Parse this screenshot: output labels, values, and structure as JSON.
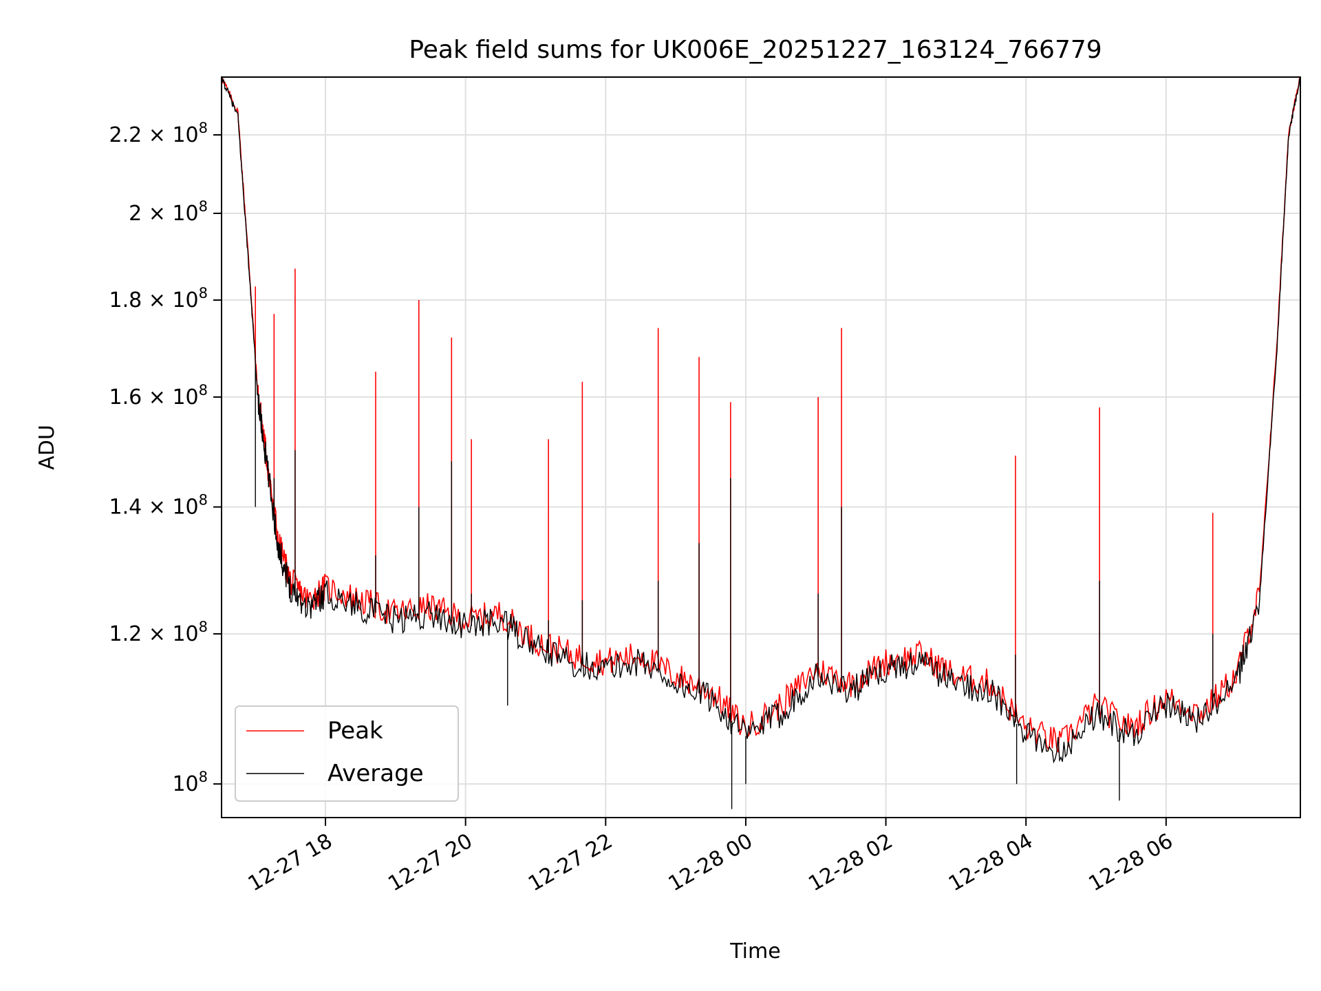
{
  "chart_data": {
    "type": "line",
    "title": "Peak field sums for UK006E_20251227_163124_766779",
    "xlabel": "Time",
    "ylabel": "ADU",
    "y_scale": "log",
    "ylim": [
      96000000,
      236000000
    ],
    "xlim": [
      "2025-12-27T16:31",
      "2025-12-28T07:55"
    ],
    "grid": true,
    "legend_position": "lower-left",
    "x_ticks": [
      {
        "t": "2025-12-27T18:00",
        "label": "12-27 18"
      },
      {
        "t": "2025-12-27T20:00",
        "label": "12-27 20"
      },
      {
        "t": "2025-12-27T22:00",
        "label": "12-27 22"
      },
      {
        "t": "2025-12-28T00:00",
        "label": "12-28 00"
      },
      {
        "t": "2025-12-28T02:00",
        "label": "12-28 02"
      },
      {
        "t": "2025-12-28T04:00",
        "label": "12-28 04"
      },
      {
        "t": "2025-12-28T06:00",
        "label": "12-28 06"
      }
    ],
    "y_ticks": [
      {
        "v": 100000000,
        "mant": "",
        "exp": "8"
      },
      {
        "v": 120000000,
        "mant": "1.2",
        "exp": "8"
      },
      {
        "v": 140000000,
        "mant": "1.4",
        "exp": "8"
      },
      {
        "v": 160000000,
        "mant": "1.6",
        "exp": "8"
      },
      {
        "v": 180000000,
        "mant": "1.8",
        "exp": "8"
      },
      {
        "v": 200000000,
        "mant": "2",
        "exp": "8"
      },
      {
        "v": 220000000,
        "mant": "2.2",
        "exp": "8"
      }
    ],
    "series": [
      {
        "name": "Average",
        "color": "#000000",
        "x": [
          "2025-12-27T16:31",
          "2025-12-27T16:45",
          "2025-12-27T16:55",
          "2025-12-27T17:02",
          "2025-12-27T17:10",
          "2025-12-27T17:20",
          "2025-12-27T17:30",
          "2025-12-27T17:45",
          "2025-12-27T18:00",
          "2025-12-27T18:30",
          "2025-12-27T19:00",
          "2025-12-27T19:30",
          "2025-12-27T20:00",
          "2025-12-27T20:30",
          "2025-12-27T21:00",
          "2025-12-27T21:30",
          "2025-12-27T22:00",
          "2025-12-27T22:30",
          "2025-12-27T23:00",
          "2025-12-27T23:30",
          "2025-12-28T00:00",
          "2025-12-28T00:30",
          "2025-12-28T01:00",
          "2025-12-28T01:30",
          "2025-12-28T02:00",
          "2025-12-28T02:30",
          "2025-12-28T03:00",
          "2025-12-28T03:30",
          "2025-12-28T04:00",
          "2025-12-28T04:30",
          "2025-12-28T05:00",
          "2025-12-28T05:30",
          "2025-12-28T06:00",
          "2025-12-28T06:30",
          "2025-12-28T07:00",
          "2025-12-28T07:20",
          "2025-12-28T07:35",
          "2025-12-28T07:45",
          "2025-12-28T07:55"
        ],
        "y": [
          236000000,
          225000000,
          185000000,
          160000000,
          147000000,
          133000000,
          127000000,
          124000000,
          126000000,
          124000000,
          122000000,
          123000000,
          121000000,
          122000000,
          118000000,
          116000000,
          115000000,
          116000000,
          113000000,
          111000000,
          106000000,
          109000000,
          114000000,
          112000000,
          115000000,
          116000000,
          113000000,
          112000000,
          106000000,
          104000000,
          109000000,
          106000000,
          110000000,
          108000000,
          113000000,
          125000000,
          170000000,
          220000000,
          236000000
        ]
      },
      {
        "name": "Peak",
        "color": "#ff0000",
        "x": [
          "2025-12-27T16:31",
          "2025-12-27T16:45",
          "2025-12-27T16:55",
          "2025-12-27T17:02",
          "2025-12-27T17:10",
          "2025-12-27T17:20",
          "2025-12-27T17:30",
          "2025-12-27T17:45",
          "2025-12-27T18:00",
          "2025-12-27T18:30",
          "2025-12-27T19:00",
          "2025-12-27T19:30",
          "2025-12-27T20:00",
          "2025-12-27T20:30",
          "2025-12-27T21:00",
          "2025-12-27T21:30",
          "2025-12-27T22:00",
          "2025-12-27T22:30",
          "2025-12-27T23:00",
          "2025-12-27T23:30",
          "2025-12-28T00:00",
          "2025-12-28T00:30",
          "2025-12-28T01:00",
          "2025-12-28T01:30",
          "2025-12-28T02:00",
          "2025-12-28T02:30",
          "2025-12-28T03:00",
          "2025-12-28T03:30",
          "2025-12-28T04:00",
          "2025-12-28T04:30",
          "2025-12-28T05:00",
          "2025-12-28T05:30",
          "2025-12-28T06:00",
          "2025-12-28T06:30",
          "2025-12-28T07:00",
          "2025-12-28T07:20",
          "2025-12-28T07:35",
          "2025-12-28T07:45",
          "2025-12-28T07:55"
        ],
        "y": [
          236000000,
          226000000,
          186000000,
          161000000,
          148000000,
          134000000,
          128000000,
          125000000,
          127000000,
          125000000,
          123000000,
          124000000,
          122000000,
          123000000,
          119000000,
          117000000,
          116000000,
          117000000,
          114000000,
          112000000,
          107000000,
          110000000,
          115000000,
          113000000,
          116000000,
          117000000,
          114000000,
          113000000,
          107000000,
          105000000,
          110000000,
          107000000,
          111000000,
          109000000,
          114000000,
          126000000,
          171000000,
          221000000,
          236000000
        ]
      }
    ],
    "spikes": [
      {
        "t": "2025-12-27T17:00",
        "peak": 183000000,
        "avg": 140000000
      },
      {
        "t": "2025-12-27T17:16",
        "peak": 177000000,
        "avg": 145000000
      },
      {
        "t": "2025-12-27T17:34",
        "peak": 187000000,
        "avg": 150000000
      },
      {
        "t": "2025-12-27T18:43",
        "peak": 165000000,
        "avg": 132000000
      },
      {
        "t": "2025-12-27T19:20",
        "peak": 180000000,
        "avg": 140000000
      },
      {
        "t": "2025-12-27T19:48",
        "peak": 172000000,
        "avg": 148000000
      },
      {
        "t": "2025-12-27T20:05",
        "peak": 152000000,
        "avg": 126000000
      },
      {
        "t": "2025-12-27T21:11",
        "peak": 152000000,
        "avg": 122000000
      },
      {
        "t": "2025-12-27T21:40",
        "peak": 163000000,
        "avg": 125000000
      },
      {
        "t": "2025-12-27T22:45",
        "peak": 174000000,
        "avg": 128000000
      },
      {
        "t": "2025-12-27T23:20",
        "peak": 168000000,
        "avg": 134000000
      },
      {
        "t": "2025-12-27T23:47",
        "peak": 159000000,
        "avg": 145000000
      },
      {
        "t": "2025-12-28T01:02",
        "peak": 160000000,
        "avg": 126000000
      },
      {
        "t": "2025-12-28T01:22",
        "peak": 174000000,
        "avg": 140000000
      },
      {
        "t": "2025-12-28T03:51",
        "peak": 149000000,
        "avg": 117000000
      },
      {
        "t": "2025-12-28T05:03",
        "peak": 158000000,
        "avg": 128000000
      },
      {
        "t": "2025-12-28T06:40",
        "peak": 139000000,
        "avg": 120000000
      }
    ],
    "dips": [
      {
        "t": "2025-12-27T20:36",
        "avg": 110000000
      },
      {
        "t": "2025-12-27T23:48",
        "avg": 97000000
      },
      {
        "t": "2025-12-28T00:00",
        "avg": 100000000
      },
      {
        "t": "2025-12-28T03:52",
        "avg": 100000000
      },
      {
        "t": "2025-12-28T05:20",
        "avg": 98000000
      }
    ]
  }
}
